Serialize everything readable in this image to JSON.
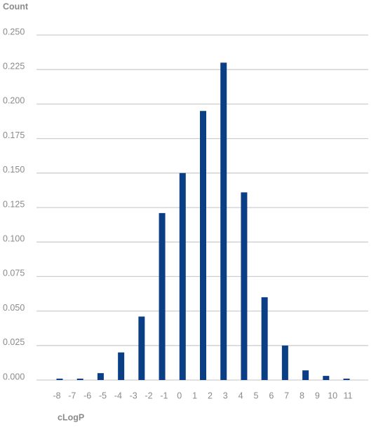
{
  "chart_data": {
    "type": "bar",
    "y_label": "Count",
    "x_label": "cLogP",
    "values": [
      0.001,
      0.001,
      0.005,
      0.02,
      0.046,
      0.121,
      0.15,
      0.195,
      0.23,
      0.136,
      0.06,
      0.025,
      0.007,
      0.003,
      0.001
    ],
    "color": "#0b3f85",
    "ylim": [
      0,
      0.25
    ],
    "yticks": [
      {
        "value": 0,
        "label": "0.000"
      },
      {
        "value": 0.025,
        "label": "0.025"
      },
      {
        "value": 0.05,
        "label": "0.050"
      },
      {
        "value": 0.075,
        "label": "0.075"
      },
      {
        "value": 0.1,
        "label": "0.100"
      },
      {
        "value": 0.125,
        "label": "0.125"
      },
      {
        "value": 0.15,
        "label": "0.150"
      },
      {
        "value": 0.175,
        "label": "0.175"
      },
      {
        "value": 0.2,
        "label": "0.200"
      },
      {
        "value": 0.225,
        "label": "0.225"
      },
      {
        "value": 0.25,
        "label": "0.250"
      }
    ],
    "xticks": [
      -8,
      -7,
      -6,
      -5,
      -4,
      -3,
      -2,
      -1,
      0,
      1,
      2,
      3,
      4,
      5,
      6,
      7,
      8,
      9,
      10,
      11
    ],
    "grid": true
  }
}
